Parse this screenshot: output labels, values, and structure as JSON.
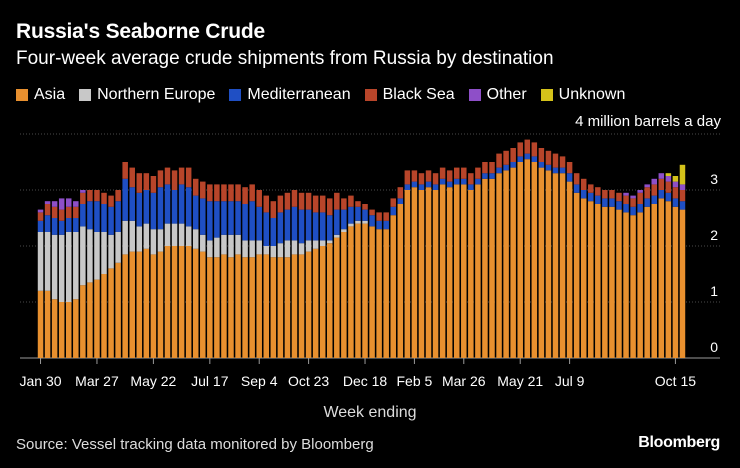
{
  "title": "Russia's Seaborne Crude",
  "subtitle": "Four-week average crude shipments from Russia by destination",
  "unit_label": "4 million barrels a day",
  "xlabel": "Week ending",
  "source": "Source: Vessel tracking data monitored by Bloomberg",
  "logo": "Bloomberg",
  "legend": [
    {
      "name": "Asia",
      "color": "#e8902f"
    },
    {
      "name": "Northern Europe",
      "color": "#c8c8c8"
    },
    {
      "name": "Mediterranean",
      "color": "#1f4fc4"
    },
    {
      "name": "Black Sea",
      "color": "#b8452a"
    },
    {
      "name": "Other",
      "color": "#8e4fc8"
    },
    {
      "name": "Unknown",
      "color": "#d4c21a"
    }
  ],
  "chart_data": {
    "type": "bar",
    "stacked": true,
    "x_tick_labels": [
      "Jan 30",
      "Mar 27",
      "May 22",
      "Jul 17",
      "Sep 4",
      "Oct 23",
      "Dec 18",
      "Feb 5",
      "Mar 26",
      "May 21",
      "Jul 9",
      "Oct 15"
    ],
    "x_tick_bars": [
      0,
      8,
      16,
      24,
      31,
      38,
      46,
      53,
      60,
      68,
      75,
      90
    ],
    "y_ticks": [
      0,
      1,
      2,
      3
    ],
    "ylim": [
      0,
      4
    ],
    "grid": true,
    "series": [
      {
        "name": "Asia",
        "values": [
          1.2,
          1.2,
          1.05,
          1.0,
          1.0,
          1.05,
          1.3,
          1.35,
          1.4,
          1.5,
          1.6,
          1.7,
          1.85,
          1.9,
          1.9,
          1.95,
          1.85,
          1.9,
          2.0,
          2.0,
          2.0,
          2.0,
          1.95,
          1.9,
          1.8,
          1.8,
          1.85,
          1.8,
          1.85,
          1.8,
          1.8,
          1.85,
          1.85,
          1.8,
          1.8,
          1.8,
          1.85,
          1.85,
          1.9,
          1.95,
          2.0,
          2.05,
          2.15,
          2.25,
          2.35,
          2.4,
          2.4,
          2.35,
          2.3,
          2.3,
          2.55,
          2.75,
          3.0,
          3.05,
          3.0,
          3.05,
          3.0,
          3.1,
          3.05,
          3.1,
          3.1,
          3.0,
          3.1,
          3.2,
          3.2,
          3.3,
          3.35,
          3.4,
          3.5,
          3.55,
          3.5,
          3.4,
          3.35,
          3.3,
          3.3,
          3.15,
          2.95,
          2.85,
          2.8,
          2.75,
          2.7,
          2.7,
          2.65,
          2.6,
          2.55,
          2.6,
          2.7,
          2.75,
          2.85,
          2.8,
          2.7,
          2.65
        ]
      },
      {
        "name": "Northern Europe",
        "values": [
          1.05,
          1.05,
          1.15,
          1.2,
          1.25,
          1.2,
          1.05,
          0.95,
          0.85,
          0.75,
          0.6,
          0.55,
          0.6,
          0.55,
          0.45,
          0.45,
          0.45,
          0.4,
          0.4,
          0.4,
          0.4,
          0.35,
          0.35,
          0.3,
          0.3,
          0.35,
          0.35,
          0.4,
          0.35,
          0.3,
          0.3,
          0.25,
          0.15,
          0.2,
          0.25,
          0.3,
          0.25,
          0.2,
          0.2,
          0.15,
          0.1,
          0.05,
          0.05,
          0.05,
          0.05,
          0.05,
          0.05,
          0.0,
          0.0,
          0.0,
          0.0,
          0.0,
          0.0,
          0.0,
          0.0,
          0.0,
          0.0,
          0.0,
          0.0,
          0.0,
          0.0,
          0.0,
          0.0,
          0.0,
          0.0,
          0.0,
          0.0,
          0.0,
          0.0,
          0.0,
          0.0,
          0.0,
          0.0,
          0.0,
          0.0,
          0.0,
          0.0,
          0.0,
          0.0,
          0.0,
          0.0,
          0.0,
          0.0,
          0.0,
          0.0,
          0.0,
          0.0,
          0.0,
          0.0,
          0.0,
          0.0,
          0.0
        ]
      },
      {
        "name": "Mediterranean",
        "values": [
          0.2,
          0.3,
          0.3,
          0.25,
          0.25,
          0.25,
          0.4,
          0.5,
          0.55,
          0.5,
          0.5,
          0.55,
          0.75,
          0.6,
          0.6,
          0.6,
          0.65,
          0.75,
          0.7,
          0.6,
          0.7,
          0.7,
          0.6,
          0.65,
          0.7,
          0.65,
          0.6,
          0.6,
          0.6,
          0.65,
          0.7,
          0.6,
          0.6,
          0.5,
          0.55,
          0.55,
          0.6,
          0.6,
          0.55,
          0.5,
          0.5,
          0.45,
          0.45,
          0.35,
          0.3,
          0.25,
          0.2,
          0.2,
          0.15,
          0.15,
          0.15,
          0.1,
          0.1,
          0.1,
          0.1,
          0.1,
          0.1,
          0.1,
          0.1,
          0.1,
          0.1,
          0.1,
          0.1,
          0.1,
          0.1,
          0.1,
          0.1,
          0.1,
          0.1,
          0.1,
          0.1,
          0.1,
          0.1,
          0.1,
          0.1,
          0.15,
          0.15,
          0.15,
          0.15,
          0.15,
          0.15,
          0.15,
          0.15,
          0.15,
          0.15,
          0.15,
          0.15,
          0.15,
          0.15,
          0.15,
          0.15,
          0.15
        ]
      },
      {
        "name": "Black Sea",
        "values": [
          0.15,
          0.2,
          0.2,
          0.2,
          0.2,
          0.2,
          0.2,
          0.2,
          0.2,
          0.2,
          0.2,
          0.2,
          0.3,
          0.35,
          0.35,
          0.3,
          0.3,
          0.3,
          0.3,
          0.35,
          0.3,
          0.35,
          0.3,
          0.3,
          0.3,
          0.3,
          0.3,
          0.3,
          0.3,
          0.3,
          0.3,
          0.3,
          0.3,
          0.3,
          0.3,
          0.3,
          0.3,
          0.3,
          0.3,
          0.3,
          0.3,
          0.3,
          0.3,
          0.2,
          0.2,
          0.1,
          0.1,
          0.1,
          0.15,
          0.15,
          0.15,
          0.2,
          0.25,
          0.2,
          0.2,
          0.2,
          0.2,
          0.2,
          0.2,
          0.2,
          0.2,
          0.2,
          0.2,
          0.2,
          0.2,
          0.25,
          0.25,
          0.25,
          0.25,
          0.25,
          0.25,
          0.25,
          0.25,
          0.25,
          0.2,
          0.2,
          0.2,
          0.2,
          0.15,
          0.15,
          0.15,
          0.15,
          0.15,
          0.15,
          0.15,
          0.2,
          0.2,
          0.2,
          0.2,
          0.2,
          0.2,
          0.2
        ]
      },
      {
        "name": "Other",
        "values": [
          0.05,
          0.05,
          0.1,
          0.2,
          0.15,
          0.1,
          0.05,
          0.0,
          0.0,
          0.0,
          0.0,
          0.0,
          0.0,
          0.0,
          0.0,
          0.0,
          0.0,
          0.0,
          0.0,
          0.0,
          0.0,
          0.0,
          0.0,
          0.0,
          0.0,
          0.0,
          0.0,
          0.0,
          0.0,
          0.0,
          0.0,
          0.0,
          0.0,
          0.0,
          0.0,
          0.0,
          0.0,
          0.0,
          0.0,
          0.0,
          0.0,
          0.0,
          0.0,
          0.0,
          0.0,
          0.0,
          0.0,
          0.0,
          0.0,
          0.0,
          0.0,
          0.0,
          0.0,
          0.0,
          0.0,
          0.0,
          0.0,
          0.0,
          0.0,
          0.0,
          0.0,
          0.0,
          0.0,
          0.0,
          0.0,
          0.0,
          0.0,
          0.0,
          0.0,
          0.0,
          0.0,
          0.0,
          0.0,
          0.0,
          0.0,
          0.0,
          0.0,
          0.0,
          0.0,
          0.0,
          0.0,
          0.0,
          0.0,
          0.05,
          0.05,
          0.05,
          0.05,
          0.1,
          0.1,
          0.1,
          0.1,
          0.1
        ]
      },
      {
        "name": "Unknown",
        "values": [
          0.0,
          0.0,
          0.0,
          0.0,
          0.0,
          0.0,
          0.0,
          0.0,
          0.0,
          0.0,
          0.0,
          0.0,
          0.0,
          0.0,
          0.0,
          0.0,
          0.0,
          0.0,
          0.0,
          0.0,
          0.0,
          0.0,
          0.0,
          0.0,
          0.0,
          0.0,
          0.0,
          0.0,
          0.0,
          0.0,
          0.0,
          0.0,
          0.0,
          0.0,
          0.0,
          0.0,
          0.0,
          0.0,
          0.0,
          0.0,
          0.0,
          0.0,
          0.0,
          0.0,
          0.0,
          0.0,
          0.0,
          0.0,
          0.0,
          0.0,
          0.0,
          0.0,
          0.0,
          0.0,
          0.0,
          0.0,
          0.0,
          0.0,
          0.0,
          0.0,
          0.0,
          0.0,
          0.0,
          0.0,
          0.0,
          0.0,
          0.0,
          0.0,
          0.0,
          0.0,
          0.0,
          0.0,
          0.0,
          0.0,
          0.0,
          0.0,
          0.0,
          0.0,
          0.0,
          0.0,
          0.0,
          0.0,
          0.0,
          0.0,
          0.0,
          0.0,
          0.0,
          0.0,
          0.0,
          0.05,
          0.1,
          0.35
        ]
      }
    ]
  }
}
